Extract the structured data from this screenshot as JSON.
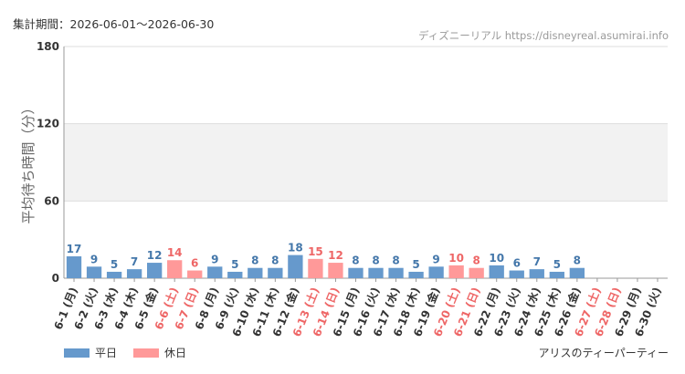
{
  "header": {
    "period": "集計期間：2026-06-01〜2026-06-30",
    "credit": "ディズニーリアル https://disneyreal.asumirai.info"
  },
  "legend": {
    "weekday_label": "平日",
    "holiday_label": "休日"
  },
  "attraction_name": "アリスのティーパーティー",
  "colors": {
    "weekday": "#6699cc",
    "holiday": "#ff9999",
    "weekday_label": "#4477aa",
    "holiday_label": "#ee6666",
    "band": "#f2f2f2"
  },
  "chart_data": {
    "type": "bar",
    "ylabel": "平均待ち時間（分）",
    "xlabel": "",
    "ylim": [
      0,
      180
    ],
    "yticks": [
      0,
      60,
      120,
      180
    ],
    "band": [
      60,
      120
    ],
    "categories": [
      "6-1 (月)",
      "6-2 (火)",
      "6-3 (水)",
      "6-4 (木)",
      "6-5 (金)",
      "6-6 (土)",
      "6-7 (日)",
      "6-8 (月)",
      "6-9 (火)",
      "6-10 (水)",
      "6-11 (木)",
      "6-12 (金)",
      "6-13 (土)",
      "6-14 (日)",
      "6-15 (月)",
      "6-16 (火)",
      "6-17 (水)",
      "6-18 (木)",
      "6-19 (金)",
      "6-20 (土)",
      "6-21 (日)",
      "6-22 (月)",
      "6-23 (火)",
      "6-24 (水)",
      "6-25 (木)",
      "6-26 (金)",
      "6-27 (土)",
      "6-28 (日)",
      "6-29 (月)",
      "6-30 (火)"
    ],
    "values": [
      17,
      9,
      5,
      7,
      12,
      14,
      6,
      9,
      5,
      8,
      8,
      18,
      15,
      12,
      8,
      8,
      8,
      5,
      9,
      10,
      8,
      10,
      6,
      7,
      5,
      8,
      null,
      null,
      null,
      null
    ],
    "day_type": [
      "weekday",
      "weekday",
      "weekday",
      "weekday",
      "weekday",
      "holiday",
      "holiday",
      "weekday",
      "weekday",
      "weekday",
      "weekday",
      "weekday",
      "holiday",
      "holiday",
      "weekday",
      "weekday",
      "weekday",
      "weekday",
      "weekday",
      "holiday",
      "holiday",
      "weekday",
      "weekday",
      "weekday",
      "weekday",
      "weekday",
      "holiday",
      "holiday",
      "weekday",
      "weekday"
    ]
  }
}
